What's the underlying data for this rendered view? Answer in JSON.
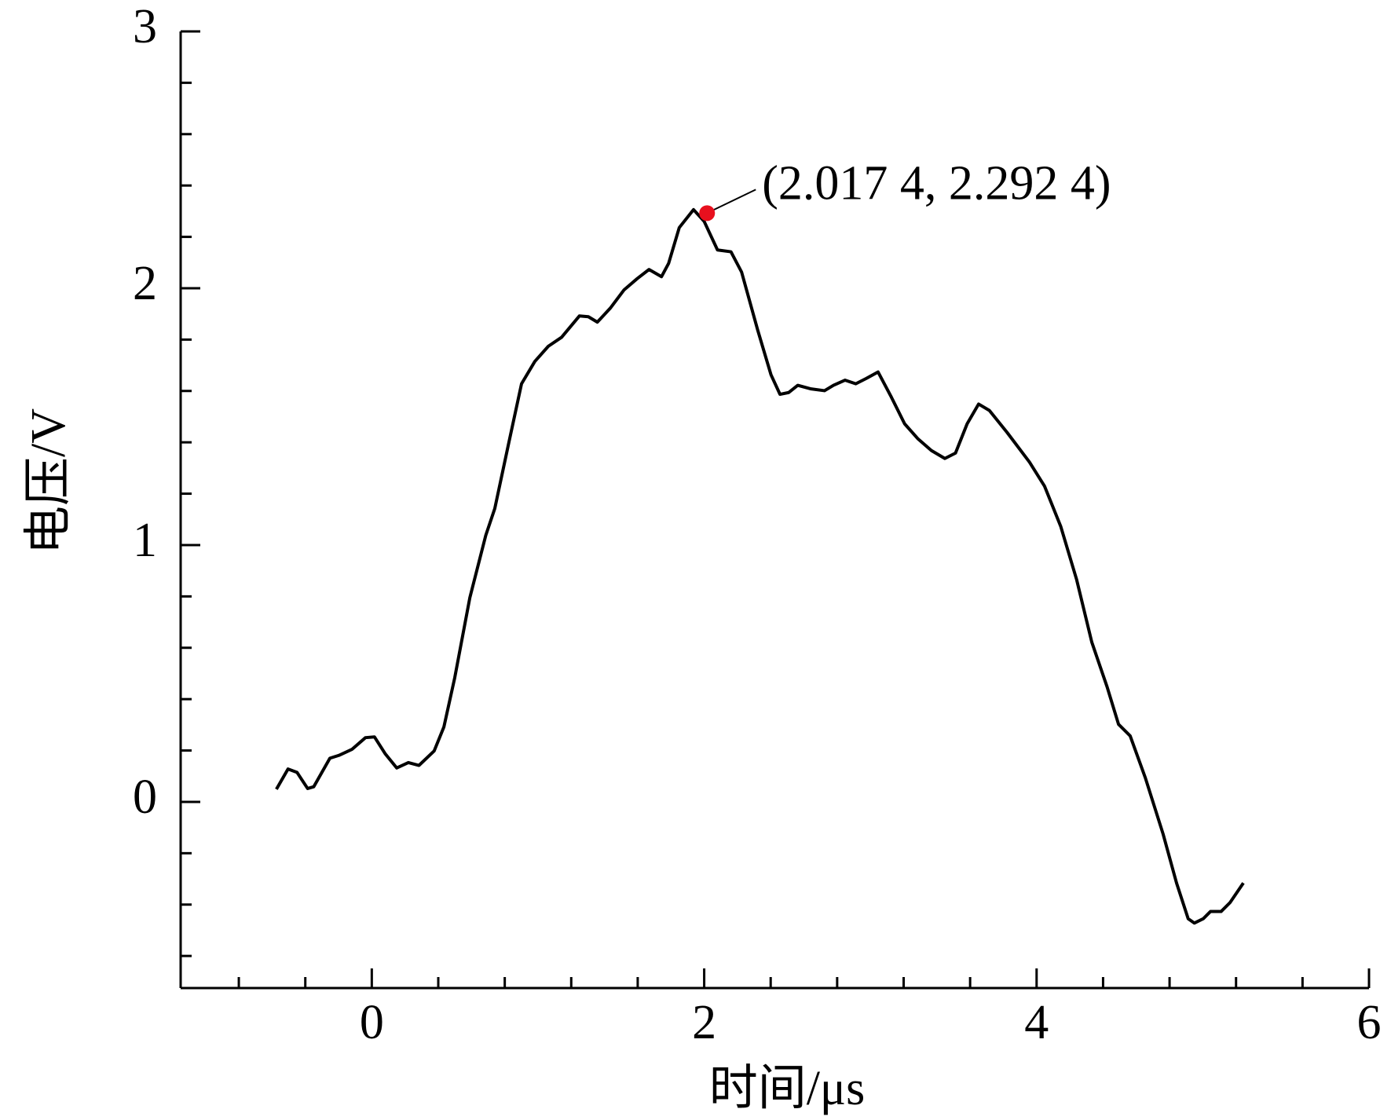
{
  "chart_data": {
    "type": "line",
    "x_label": "时间/μs",
    "y_label": "电压/V",
    "xlim": [
      -1.15,
      6
    ],
    "ylim": [
      -0.725,
      3
    ],
    "xticks": [
      0,
      2,
      4,
      6
    ],
    "yticks": [
      0,
      1,
      2,
      3
    ],
    "xminor_ticks": [
      -0.8,
      -0.4,
      0.4,
      0.8,
      1.2,
      1.6,
      2.4,
      2.8,
      3.2,
      3.6,
      4.4,
      4.8,
      5.2,
      5.6
    ],
    "yminor_ticks": [
      -0.6,
      -0.4,
      -0.2,
      0.2,
      0.4,
      0.6,
      0.8,
      1.2,
      1.4,
      1.6,
      1.8,
      2.2,
      2.4,
      2.6,
      2.8
    ],
    "series": [
      {
        "color": "#000000",
        "x": [
          -0.574,
          -0.504,
          -0.45,
          -0.386,
          -0.349,
          -0.252,
          -0.198,
          -0.118,
          -0.038,
          0.016,
          0.08,
          0.15,
          0.22,
          0.284,
          0.375,
          0.434,
          0.499,
          0.59,
          0.686,
          0.74,
          0.82,
          0.901,
          0.981,
          1.062,
          1.142,
          1.249,
          1.303,
          1.357,
          1.437,
          1.517,
          1.598,
          1.668,
          1.743,
          1.786,
          1.85,
          1.936,
          2.0,
          2.08,
          2.161,
          2.225,
          2.322,
          2.402,
          2.456,
          2.509,
          2.563,
          2.643,
          2.724,
          2.778,
          2.847,
          2.912,
          2.976,
          3.046,
          3.126,
          3.206,
          3.287,
          3.367,
          3.448,
          3.512,
          3.582,
          3.651,
          3.716,
          3.823,
          3.957,
          4.048,
          4.145,
          4.241,
          4.332,
          4.424,
          4.493,
          4.563,
          4.654,
          4.761,
          4.842,
          4.912,
          4.949,
          5.003,
          5.046,
          5.11,
          5.164,
          5.244
        ],
        "values": [
          0.049,
          0.128,
          0.115,
          0.052,
          0.059,
          0.17,
          0.181,
          0.205,
          0.25,
          0.253,
          0.188,
          0.132,
          0.153,
          0.142,
          0.198,
          0.292,
          0.483,
          0.795,
          1.038,
          1.142,
          1.385,
          1.628,
          1.715,
          1.774,
          1.809,
          1.892,
          1.889,
          1.868,
          1.924,
          1.993,
          2.038,
          2.073,
          2.045,
          2.097,
          2.236,
          2.306,
          2.26,
          2.149,
          2.142,
          2.063,
          1.837,
          1.663,
          1.587,
          1.594,
          1.622,
          1.608,
          1.601,
          1.622,
          1.642,
          1.628,
          1.649,
          1.674,
          1.576,
          1.472,
          1.413,
          1.368,
          1.337,
          1.358,
          1.472,
          1.549,
          1.524,
          1.438,
          1.323,
          1.229,
          1.073,
          0.865,
          0.622,
          0.448,
          0.302,
          0.257,
          0.094,
          -0.125,
          -0.316,
          -0.455,
          -0.472,
          -0.455,
          -0.427,
          -0.427,
          -0.392,
          -0.316
        ]
      }
    ],
    "annotation": {
      "text": "(2.017 4, 2.292 4)",
      "x": 2.0174,
      "y": 2.2924,
      "color": "#e8101e"
    }
  }
}
